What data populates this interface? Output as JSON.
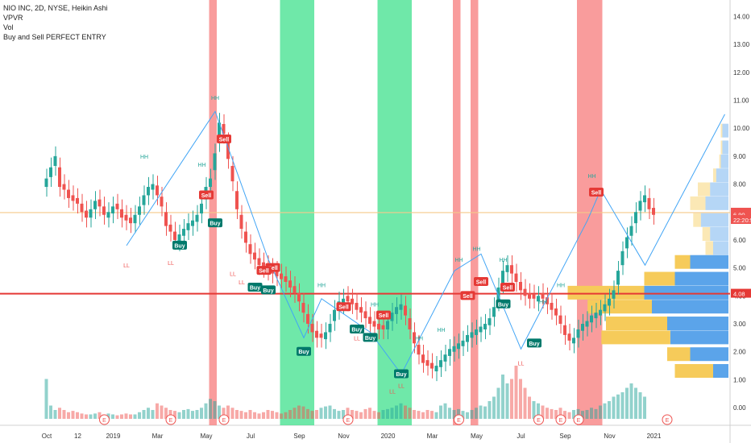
{
  "legend": {
    "title": "NIO INC, 2D, NYSE, Heikin Ashi",
    "line2": "VPVR",
    "line3": "Vol",
    "line4": "Buy and Sell PERFECT ENTRY"
  },
  "colors": {
    "up": "#26a69a",
    "down": "#ef5350",
    "red_zone": "#f77b7b",
    "green_zone": "#3fe08c",
    "zigzag": "#42a5f5",
    "hline_red": "#e53935",
    "hline_orange": "#f5c98a",
    "vp_blue": "#5ba4ea",
    "vp_yellow": "#f6cb5a"
  },
  "chart_data": {
    "type": "candlestick",
    "title": "NIO INC, 2D, NYSE, Heikin Ashi",
    "y_axis": {
      "min": 0,
      "max": 14,
      "ticks": [
        0.0,
        1.0,
        2.0,
        3.0,
        4.0,
        5.0,
        6.0,
        7.0,
        8.0,
        9.0,
        10.0,
        11.0,
        12.0,
        13.0,
        14.0
      ]
    },
    "y_tick_labels": [
      "0.00",
      "1.00",
      "2.00",
      "3.00",
      "4.00",
      "5.00",
      "6.00",
      "7.00",
      "8.00",
      "9.00",
      "10.00",
      "11.00",
      "12.00",
      "13.00",
      "14.00"
    ],
    "x_tick_labels": [
      "Oct",
      "12",
      "2019",
      "Mar",
      "May",
      "Jul",
      "Sep",
      "Nov",
      "2020",
      "Mar",
      "May",
      "Jul",
      "Sep",
      "Nov",
      "2021"
    ],
    "x_tick_index": [
      0,
      7,
      15,
      25,
      36,
      46,
      57,
      67,
      77,
      87,
      97,
      107,
      117,
      127,
      137
    ],
    "price_labels": [
      {
        "value": 6.98,
        "text": "6.98",
        "color": "#ef5350"
      },
      {
        "value": 6.9,
        "text": "6.90",
        "color": "#ef5350"
      },
      {
        "value": 4.08,
        "text": "4.08",
        "color": "#e53935"
      },
      {
        "value": 6.72,
        "text": "22:20:53",
        "color": "#ef5350"
      }
    ],
    "horizontal_lines": [
      {
        "value": 6.98,
        "color": "orange"
      },
      {
        "value": 4.08,
        "color": "red"
      }
    ],
    "closes": [
      8.2,
      8.6,
      9.0,
      7.9,
      7.8,
      7.5,
      7.4,
      7.3,
      7.0,
      6.8,
      7.1,
      7.4,
      7.2,
      6.9,
      7.0,
      7.2,
      7.1,
      6.8,
      6.7,
      6.6,
      6.9,
      7.2,
      7.6,
      7.9,
      8.0,
      7.6,
      7.2,
      6.5,
      6.3,
      6.0,
      6.2,
      6.4,
      6.6,
      6.7,
      6.9,
      7.3,
      7.9,
      8.2,
      9.1,
      10.2,
      9.8,
      8.9,
      8.1,
      7.1,
      6.4,
      5.9,
      5.5,
      5.3,
      5.1,
      5.0,
      4.9,
      4.8,
      4.7,
      4.6,
      4.5,
      4.3,
      4.1,
      3.8,
      3.4,
      3.0,
      2.7,
      2.5,
      2.5,
      2.7,
      3.0,
      3.5,
      3.8,
      3.9,
      3.8,
      3.7,
      3.5,
      3.4,
      3.2,
      3.0,
      2.9,
      2.8,
      2.8,
      3.1,
      3.4,
      3.6,
      3.7,
      3.3,
      2.8,
      2.3,
      1.9,
      1.6,
      1.5,
      1.4,
      1.5,
      1.7,
      1.9,
      2.1,
      2.2,
      2.3,
      2.4,
      2.6,
      2.7,
      2.8,
      2.9,
      3.0,
      3.2,
      3.6,
      4.3,
      4.9,
      5.1,
      4.8,
      4.5,
      4.2,
      4.0,
      3.9,
      3.9,
      4.0,
      3.9,
      3.7,
      3.5,
      3.3,
      3.0,
      2.6,
      2.4,
      2.5,
      2.8,
      3.0,
      3.1,
      3.3,
      3.4,
      3.5,
      3.7,
      3.9,
      4.2,
      4.9,
      5.6,
      6.1,
      6.5,
      7.0,
      7.4,
      7.6,
      7.1,
      6.9
    ],
    "volumes": [
      0.9,
      0.3,
      0.2,
      0.25,
      0.2,
      0.15,
      0.18,
      0.15,
      0.12,
      0.1,
      0.1,
      0.12,
      0.15,
      0.1,
      0.12,
      0.1,
      0.08,
      0.1,
      0.12,
      0.1,
      0.1,
      0.15,
      0.2,
      0.25,
      0.2,
      0.35,
      0.3,
      0.25,
      0.2,
      0.18,
      0.15,
      0.2,
      0.22,
      0.18,
      0.2,
      0.25,
      0.35,
      0.45,
      0.4,
      0.3,
      0.25,
      0.3,
      0.25,
      0.2,
      0.18,
      0.15,
      0.2,
      0.15,
      0.12,
      0.15,
      0.2,
      0.18,
      0.15,
      0.12,
      0.15,
      0.2,
      0.25,
      0.3,
      0.28,
      0.22,
      0.18,
      0.2,
      0.25,
      0.28,
      0.3,
      0.22,
      0.18,
      0.2,
      0.25,
      0.2,
      0.18,
      0.15,
      0.22,
      0.25,
      0.18,
      0.15,
      0.2,
      0.22,
      0.25,
      0.3,
      0.35,
      0.3,
      0.25,
      0.2,
      0.18,
      0.15,
      0.2,
      0.18,
      0.15,
      0.3,
      0.35,
      0.25,
      0.2,
      0.22,
      0.18,
      0.15,
      0.2,
      0.25,
      0.3,
      0.28,
      0.4,
      0.5,
      0.7,
      1.0,
      0.8,
      0.9,
      1.2,
      0.9,
      0.7,
      0.5,
      0.4,
      0.35,
      0.3,
      0.25,
      0.22,
      0.2,
      0.25,
      0.18,
      0.15,
      0.2,
      0.22,
      0.18,
      0.2,
      0.25,
      0.22,
      0.3,
      0.35,
      0.4,
      0.5,
      0.55,
      0.6,
      0.7,
      0.8,
      0.7,
      0.6,
      0.5
    ]
  },
  "zones": [
    {
      "color": "red",
      "from": 37,
      "to": 38
    },
    {
      "color": "green",
      "from": 53,
      "to": 60
    },
    {
      "color": "green",
      "from": 75,
      "to": 82
    },
    {
      "color": "red",
      "from": 92,
      "to": 93
    },
    {
      "color": "red",
      "from": 96,
      "to": 97
    },
    {
      "color": "red",
      "from": 120,
      "to": 125
    }
  ],
  "signals": [
    {
      "label": "Sell",
      "type": "sell",
      "idx": 36,
      "price": 7.6
    },
    {
      "label": "Sell",
      "type": "sell",
      "idx": 40,
      "price": 9.6
    },
    {
      "label": "Buy",
      "type": "buy",
      "idx": 38,
      "price": 6.6
    },
    {
      "label": "Buy",
      "type": "buy",
      "idx": 30,
      "price": 5.8
    },
    {
      "label": "Sell",
      "type": "sell",
      "idx": 51,
      "price": 5.0
    },
    {
      "label": "Sell",
      "type": "sell",
      "idx": 49,
      "price": 4.9
    },
    {
      "label": "Buy",
      "type": "buy",
      "idx": 47,
      "price": 4.3
    },
    {
      "label": "Buy",
      "type": "buy",
      "idx": 50,
      "price": 4.2
    },
    {
      "label": "Buy",
      "type": "buy",
      "idx": 58,
      "price": 2.0
    },
    {
      "label": "Sell",
      "type": "sell",
      "idx": 67,
      "price": 3.6
    },
    {
      "label": "Buy",
      "type": "buy",
      "idx": 70,
      "price": 2.8
    },
    {
      "label": "Buy",
      "type": "buy",
      "idx": 73,
      "price": 2.5
    },
    {
      "label": "Sell",
      "type": "sell",
      "idx": 76,
      "price": 3.3
    },
    {
      "label": "Buy",
      "type": "buy",
      "idx": 80,
      "price": 1.2
    },
    {
      "label": "Sell",
      "type": "sell",
      "idx": 95,
      "price": 4.0
    },
    {
      "label": "Sell",
      "type": "sell",
      "idx": 98,
      "price": 4.5
    },
    {
      "label": "Sell",
      "type": "sell",
      "idx": 104,
      "price": 4.3
    },
    {
      "label": "Buy",
      "type": "buy",
      "idx": 103,
      "price": 3.7
    },
    {
      "label": "Buy",
      "type": "buy",
      "idx": 110,
      "price": 2.3
    },
    {
      "label": "Sell",
      "type": "sell",
      "idx": 124,
      "price": 7.7
    }
  ],
  "pivots": [
    {
      "label": "HH",
      "idx": 22,
      "price": 8.8,
      "kind": "high"
    },
    {
      "label": "HH",
      "idx": 38,
      "price": 10.9,
      "kind": "high"
    },
    {
      "label": "HH",
      "idx": 35,
      "price": 8.5,
      "kind": "high"
    },
    {
      "label": "LL",
      "idx": 18,
      "price": 5.3,
      "kind": "low"
    },
    {
      "label": "LL",
      "idx": 28,
      "price": 5.4,
      "kind": "low"
    },
    {
      "label": "LL",
      "idx": 42,
      "price": 5.0,
      "kind": "low"
    },
    {
      "label": "LL",
      "idx": 44,
      "price": 4.7,
      "kind": "low"
    },
    {
      "label": "HH",
      "idx": 62,
      "price": 4.2,
      "kind": "high"
    },
    {
      "label": "HH",
      "idx": 74,
      "price": 3.5,
      "kind": "high"
    },
    {
      "label": "LL",
      "idx": 70,
      "price": 2.7,
      "kind": "low"
    },
    {
      "label": "LL",
      "idx": 78,
      "price": 0.8,
      "kind": "low"
    },
    {
      "label": "LL",
      "idx": 80,
      "price": 1.0,
      "kind": "low"
    },
    {
      "label": "HH",
      "idx": 84,
      "price": 2.3,
      "kind": "high"
    },
    {
      "label": "HH",
      "idx": 89,
      "price": 2.6,
      "kind": "high"
    },
    {
      "label": "HH",
      "idx": 93,
      "price": 5.1,
      "kind": "high"
    },
    {
      "label": "HH",
      "idx": 97,
      "price": 5.5,
      "kind": "high"
    },
    {
      "label": "HH",
      "idx": 103,
      "price": 5.1,
      "kind": "high"
    },
    {
      "label": "LL",
      "idx": 107,
      "price": 1.8,
      "kind": "low"
    },
    {
      "label": "HH",
      "idx": 112,
      "price": 3.6,
      "kind": "high"
    },
    {
      "label": "HH",
      "idx": 116,
      "price": 4.2,
      "kind": "high"
    },
    {
      "label": "HH",
      "idx": 123,
      "price": 8.1,
      "kind": "high"
    }
  ],
  "zigzag": [
    {
      "idx": 18,
      "price": 5.8
    },
    {
      "idx": 38,
      "price": 10.6
    },
    {
      "idx": 50,
      "price": 5.3
    },
    {
      "idx": 58,
      "price": 2.5
    },
    {
      "idx": 62,
      "price": 3.9
    },
    {
      "idx": 73,
      "price": 2.7
    },
    {
      "idx": 80,
      "price": 1.2
    },
    {
      "idx": 92,
      "price": 4.9
    },
    {
      "idx": 98,
      "price": 5.5
    },
    {
      "idx": 107,
      "price": 2.1
    },
    {
      "idx": 122,
      "price": 6.7
    },
    {
      "idx": 125,
      "price": 7.8
    },
    {
      "idx": 135,
      "price": 5.1
    },
    {
      "idx": 153,
      "price": 10.5
    }
  ],
  "volume_profile": [
    {
      "price": 1.3,
      "blue": 0.1,
      "yellow": 0.25
    },
    {
      "price": 1.9,
      "blue": 0.25,
      "yellow": 0.15
    },
    {
      "price": 2.5,
      "blue": 0.38,
      "yellow": 0.45
    },
    {
      "price": 3.0,
      "blue": 0.4,
      "yellow": 0.4
    },
    {
      "price": 3.6,
      "blue": 0.5,
      "yellow": 0.42
    },
    {
      "price": 4.1,
      "blue": 0.55,
      "yellow": 0.5
    },
    {
      "price": 4.6,
      "blue": 0.35,
      "yellow": 0.2
    },
    {
      "price": 5.2,
      "blue": 0.25,
      "yellow": 0.1
    },
    {
      "price": 5.7,
      "blue": 0.1,
      "yellow": 0.05
    },
    {
      "price": 6.2,
      "blue": 0.12,
      "yellow": 0.05
    },
    {
      "price": 6.7,
      "blue": 0.18,
      "yellow": 0.05
    },
    {
      "price": 7.3,
      "blue": 0.15,
      "yellow": 0.1
    },
    {
      "price": 7.8,
      "blue": 0.12,
      "yellow": 0.08
    },
    {
      "price": 8.3,
      "blue": 0.08,
      "yellow": 0.02
    },
    {
      "price": 8.8,
      "blue": 0.05,
      "yellow": 0.01
    },
    {
      "price": 9.3,
      "blue": 0.04,
      "yellow": 0.01
    },
    {
      "price": 9.9,
      "blue": 0.04,
      "yellow": 0.01
    }
  ],
  "earnings": [
    13,
    28,
    40,
    68,
    93,
    111,
    116,
    120,
    140
  ]
}
